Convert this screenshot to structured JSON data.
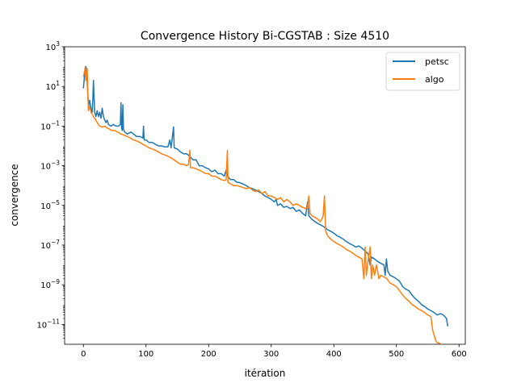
{
  "chart_data": {
    "type": "line",
    "title": "Convergence History Bi-CGSTAB : Size 4510",
    "xlabel": "itération",
    "ylabel": "convergence",
    "xlim": [
      -30,
      610
    ],
    "ylim": [
      1e-12,
      1000
    ],
    "yscale": "log",
    "x_ticks": [
      0,
      100,
      200,
      300,
      400,
      500,
      600
    ],
    "y_tick_exponents": [
      3,
      1,
      -1,
      -3,
      -5,
      -7,
      -9,
      -11
    ],
    "y_tick_base": "10",
    "legend_position": "upper right",
    "grid": false,
    "series": [
      {
        "name": "petsc",
        "color": "#1f77b4",
        "points": [
          [
            0,
            8
          ],
          [
            2,
            40
          ],
          [
            4,
            100
          ],
          [
            6,
            20
          ],
          [
            8,
            1
          ],
          [
            10,
            2
          ],
          [
            12,
            0.8
          ],
          [
            14,
            0.5
          ],
          [
            15,
            2
          ],
          [
            16,
            20
          ],
          [
            18,
            0.5
          ],
          [
            20,
            0.3
          ],
          [
            22,
            0.6
          ],
          [
            24,
            0.3
          ],
          [
            26,
            0.5
          ],
          [
            28,
            0.25
          ],
          [
            30,
            0.8
          ],
          [
            32,
            0.3
          ],
          [
            34,
            0.2
          ],
          [
            36,
            0.15
          ],
          [
            38,
            0.2
          ],
          [
            40,
            0.12
          ],
          [
            44,
            0.1
          ],
          [
            48,
            0.12
          ],
          [
            52,
            0.1
          ],
          [
            56,
            0.1
          ],
          [
            59,
            0.12
          ],
          [
            60,
            1.5
          ],
          [
            61,
            0.08
          ],
          [
            62,
            0.06
          ],
          [
            63,
            1.2
          ],
          [
            64,
            0.07
          ],
          [
            66,
            0.05
          ],
          [
            70,
            0.04
          ],
          [
            76,
            0.05
          ],
          [
            80,
            0.04
          ],
          [
            85,
            0.03
          ],
          [
            90,
            0.03
          ],
          [
            95,
            0.025
          ],
          [
            96,
            0.1
          ],
          [
            97,
            0.02
          ],
          [
            100,
            0.02
          ],
          [
            105,
            0.015
          ],
          [
            110,
            0.015
          ],
          [
            115,
            0.012
          ],
          [
            120,
            0.01
          ],
          [
            125,
            0.01
          ],
          [
            130,
            0.009
          ],
          [
            135,
            0.009
          ],
          [
            138,
            0.02
          ],
          [
            140,
            0.008
          ],
          [
            144,
            0.09
          ],
          [
            145,
            0.008
          ],
          [
            150,
            0.007
          ],
          [
            155,
            0.005
          ],
          [
            160,
            0.004
          ],
          [
            165,
            0.004
          ],
          [
            170,
            0.003
          ],
          [
            175,
            0.002
          ],
          [
            180,
            0.002
          ],
          [
            185,
            0.001
          ],
          [
            190,
            0.001
          ],
          [
            195,
            0.0008
          ],
          [
            200,
            0.0007
          ],
          [
            205,
            0.0005
          ],
          [
            210,
            0.0006
          ],
          [
            215,
            0.0004
          ],
          [
            220,
            0.0004
          ],
          [
            225,
            0.0003
          ],
          [
            228,
            0.0006
          ],
          [
            230,
            0.0003
          ],
          [
            235,
            0.0002
          ],
          [
            240,
            0.0002
          ],
          [
            245,
            0.00015
          ],
          [
            250,
            0.00014
          ],
          [
            255,
            0.00012
          ],
          [
            260,
            0.0001
          ],
          [
            265,
            8e-05
          ],
          [
            270,
            7e-05
          ],
          [
            275,
            6e-05
          ],
          [
            280,
            5e-05
          ],
          [
            285,
            4e-05
          ],
          [
            290,
            3e-05
          ],
          [
            295,
            2.5e-05
          ],
          [
            300,
            2e-05
          ],
          [
            305,
            1.5e-05
          ],
          [
            308,
            2e-05
          ],
          [
            310,
            1e-05
          ],
          [
            315,
            1.2e-05
          ],
          [
            320,
            8e-06
          ],
          [
            325,
            9e-06
          ],
          [
            330,
            7e-06
          ],
          [
            335,
            8e-06
          ],
          [
            340,
            5e-06
          ],
          [
            345,
            6e-06
          ],
          [
            350,
            4e-06
          ],
          [
            355,
            3e-06
          ],
          [
            358,
            1.5e-05
          ],
          [
            360,
            3e-06
          ],
          [
            365,
            2e-06
          ],
          [
            370,
            1.5e-06
          ],
          [
            375,
            1.2e-06
          ],
          [
            380,
            1e-06
          ],
          [
            385,
            8e-07
          ],
          [
            390,
            6e-07
          ],
          [
            395,
            5e-07
          ],
          [
            400,
            4e-07
          ],
          [
            405,
            3e-07
          ],
          [
            410,
            2.5e-07
          ],
          [
            415,
            2e-07
          ],
          [
            420,
            1.5e-07
          ],
          [
            425,
            1.2e-07
          ],
          [
            430,
            1e-07
          ],
          [
            435,
            8e-08
          ],
          [
            440,
            9e-08
          ],
          [
            445,
            7e-08
          ],
          [
            450,
            5e-08
          ],
          [
            455,
            3.5e-08
          ],
          [
            458,
            1e-08
          ],
          [
            460,
            2.5e-08
          ],
          [
            465,
            2e-08
          ],
          [
            470,
            1.5e-08
          ],
          [
            475,
            1.2e-08
          ],
          [
            480,
            1e-08
          ],
          [
            482,
            3e-09
          ],
          [
            484,
            2e-08
          ],
          [
            486,
            5e-09
          ],
          [
            490,
            3e-09
          ],
          [
            495,
            2.5e-09
          ],
          [
            500,
            2e-09
          ],
          [
            505,
            1.5e-09
          ],
          [
            510,
            8e-10
          ],
          [
            515,
            6e-10
          ],
          [
            520,
            5e-10
          ],
          [
            525,
            3e-10
          ],
          [
            530,
            2e-10
          ],
          [
            535,
            1.5e-10
          ],
          [
            540,
            1e-10
          ],
          [
            545,
            8e-11
          ],
          [
            550,
            6e-11
          ],
          [
            555,
            5e-11
          ],
          [
            560,
            4e-11
          ],
          [
            565,
            3e-11
          ],
          [
            570,
            3.5e-11
          ],
          [
            575,
            3e-11
          ],
          [
            580,
            2e-11
          ],
          [
            582,
            8e-12
          ]
        ]
      },
      {
        "name": "algo",
        "color": "#ff7f0e",
        "points": [
          [
            0,
            30
          ],
          [
            2,
            60
          ],
          [
            3,
            100
          ],
          [
            4,
            20
          ],
          [
            6,
            80
          ],
          [
            8,
            0.6
          ],
          [
            10,
            1
          ],
          [
            12,
            0.5
          ],
          [
            14,
            0.4
          ],
          [
            16,
            0.3
          ],
          [
            18,
            0.25
          ],
          [
            20,
            0.2
          ],
          [
            22,
            0.15
          ],
          [
            24,
            0.12
          ],
          [
            26,
            0.1
          ],
          [
            30,
            0.09
          ],
          [
            34,
            0.1
          ],
          [
            38,
            0.08
          ],
          [
            42,
            0.07
          ],
          [
            46,
            0.06
          ],
          [
            50,
            0.06
          ],
          [
            55,
            0.05
          ],
          [
            60,
            0.04
          ],
          [
            65,
            0.035
          ],
          [
            70,
            0.03
          ],
          [
            75,
            0.025
          ],
          [
            80,
            0.02
          ],
          [
            85,
            0.018
          ],
          [
            90,
            0.015
          ],
          [
            95,
            0.012
          ],
          [
            100,
            0.01
          ],
          [
            105,
            0.008
          ],
          [
            110,
            0.007
          ],
          [
            115,
            0.006
          ],
          [
            120,
            0.005
          ],
          [
            125,
            0.004
          ],
          [
            130,
            0.0035
          ],
          [
            135,
            0.003
          ],
          [
            140,
            0.0025
          ],
          [
            145,
            0.002
          ],
          [
            150,
            0.0015
          ],
          [
            155,
            0.0012
          ],
          [
            160,
            0.0012
          ],
          [
            165,
            0.001
          ],
          [
            168,
            0.0012
          ],
          [
            170,
            0.006
          ],
          [
            171,
            0.0008
          ],
          [
            175,
            0.0008
          ],
          [
            180,
            0.0007
          ],
          [
            185,
            0.0006
          ],
          [
            190,
            0.0005
          ],
          [
            195,
            0.0004
          ],
          [
            200,
            0.0004
          ],
          [
            205,
            0.0003
          ],
          [
            210,
            0.0003
          ],
          [
            215,
            0.00025
          ],
          [
            220,
            0.0002
          ],
          [
            225,
            0.00018
          ],
          [
            228,
            0.0002
          ],
          [
            230,
            0.006
          ],
          [
            231,
            0.00015
          ],
          [
            235,
            0.00012
          ],
          [
            240,
            0.0001
          ],
          [
            245,
            0.0001
          ],
          [
            250,
            9e-05
          ],
          [
            255,
            8e-05
          ],
          [
            260,
            7e-05
          ],
          [
            265,
            8e-05
          ],
          [
            270,
            6e-05
          ],
          [
            275,
            5e-05
          ],
          [
            280,
            6e-05
          ],
          [
            285,
            4e-05
          ],
          [
            290,
            5e-05
          ],
          [
            295,
            3e-05
          ],
          [
            300,
            3e-05
          ],
          [
            305,
            2.5e-05
          ],
          [
            310,
            2e-05
          ],
          [
            315,
            2.5e-05
          ],
          [
            320,
            1.5e-05
          ],
          [
            325,
            2e-05
          ],
          [
            330,
            1.5e-05
          ],
          [
            335,
            1e-05
          ],
          [
            340,
            1.2e-05
          ],
          [
            345,
            1e-05
          ],
          [
            350,
            8e-06
          ],
          [
            355,
            7e-06
          ],
          [
            358,
            8e-06
          ],
          [
            360,
            3e-05
          ],
          [
            362,
            4e-06
          ],
          [
            365,
            3e-06
          ],
          [
            370,
            2.5e-06
          ],
          [
            375,
            2e-06
          ],
          [
            378,
            1.5e-06
          ],
          [
            380,
            1.8e-06
          ],
          [
            383,
            3e-06
          ],
          [
            385,
            3e-05
          ],
          [
            387,
            5e-07
          ],
          [
            390,
            3e-07
          ],
          [
            395,
            2e-07
          ],
          [
            400,
            1.5e-07
          ],
          [
            405,
            1.2e-07
          ],
          [
            410,
            1e-07
          ],
          [
            415,
            8e-08
          ],
          [
            420,
            6e-08
          ],
          [
            425,
            5e-08
          ],
          [
            430,
            4e-08
          ],
          [
            435,
            3e-08
          ],
          [
            440,
            2.5e-08
          ],
          [
            445,
            2e-08
          ],
          [
            448,
            2e-09
          ],
          [
            450,
            8e-08
          ],
          [
            452,
            3e-09
          ],
          [
            455,
            2e-08
          ],
          [
            458,
            8e-08
          ],
          [
            460,
            2e-09
          ],
          [
            462,
            1e-08
          ],
          [
            465,
            3e-09
          ],
          [
            468,
            1e-08
          ],
          [
            470,
            5e-09
          ],
          [
            472,
            2e-09
          ],
          [
            475,
            3e-09
          ],
          [
            480,
            2.5e-09
          ],
          [
            485,
            2e-09
          ],
          [
            490,
            1.2e-09
          ],
          [
            495,
            1e-09
          ],
          [
            500,
            8e-10
          ],
          [
            505,
            5e-10
          ],
          [
            510,
            3e-10
          ],
          [
            515,
            2e-10
          ],
          [
            520,
            1.5e-10
          ],
          [
            525,
            1e-10
          ],
          [
            530,
            8e-11
          ],
          [
            535,
            6e-11
          ],
          [
            540,
            5e-11
          ],
          [
            545,
            4e-11
          ],
          [
            550,
            3e-11
          ],
          [
            555,
            2.5e-11
          ],
          [
            558,
            5e-12
          ],
          [
            560,
            3e-12
          ],
          [
            563,
            1.5e-12
          ],
          [
            565,
            1.2e-12
          ],
          [
            570,
            1.1e-12
          ]
        ]
      }
    ]
  }
}
